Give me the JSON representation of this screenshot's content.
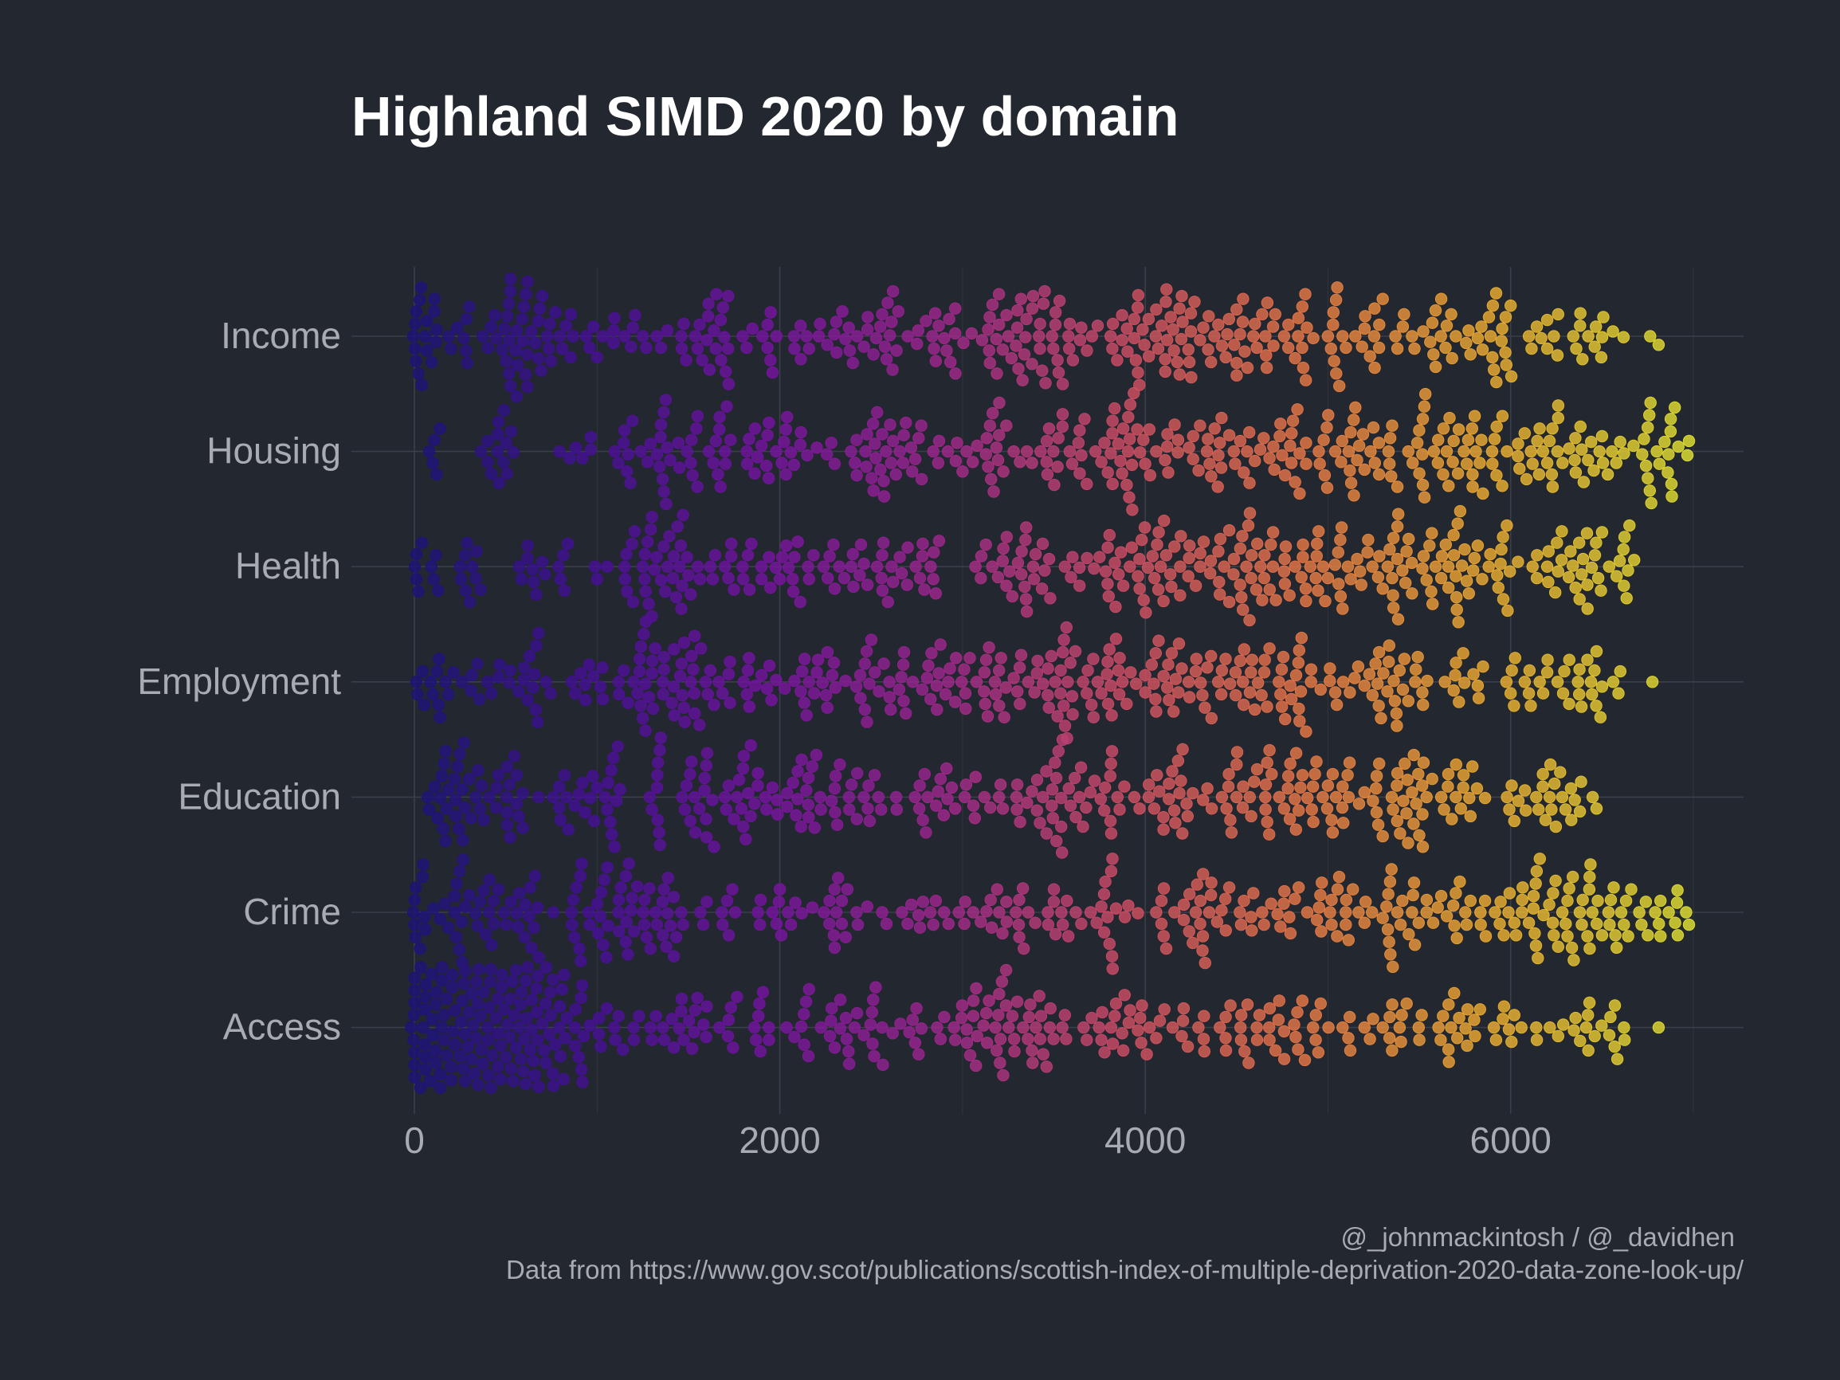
{
  "chart_data": {
    "type": "scatter",
    "subtype": "beeswarm",
    "title": "Highland SIMD 2020 by domain",
    "xlabel": "",
    "ylabel": "",
    "xlim": [
      -310,
      7300
    ],
    "x_ticks": [
      0,
      2000,
      4000,
      6000
    ],
    "x_tick_labels": [
      "0",
      "2000",
      "4000",
      "6000"
    ],
    "grid": true,
    "legend": "none",
    "categories": [
      "Income",
      "Housing",
      "Health",
      "Employment",
      "Education",
      "Crime",
      "Access"
    ],
    "color_scale": {
      "low": "#1c1479",
      "mid_low": "#6d0fa6",
      "mid": "#b83a80",
      "mid_high": "#e8773f",
      "high": "#e3e436",
      "domain": [
        0,
        6976
      ]
    },
    "series": [
      {
        "name": "Income",
        "approx_points": 312,
        "x_range": [
          10,
          6810
        ],
        "values": [
          10,
          60,
          110,
          200,
          300,
          420,
          480,
          560,
          600,
          640,
          700,
          830,
          980,
          1000,
          1150,
          1250,
          1350,
          1460,
          1550,
          1600,
          1650,
          1720,
          1850,
          1950,
          2080,
          2160,
          2260,
          2400,
          2480,
          2560,
          2620,
          2700,
          2800,
          2900,
          2960,
          3050,
          3140,
          3200,
          3300,
          3380,
          3450,
          3520,
          3580,
          3650,
          3740,
          3820,
          3900,
          3960,
          4020,
          4060,
          4120,
          4200,
          4250,
          4300,
          4360,
          4420,
          4500,
          4560,
          4640,
          4700,
          4760,
          4820,
          4860,
          4920,
          5000,
          5080,
          5150,
          5230,
          5300,
          5380,
          5460,
          5560,
          5620,
          5700,
          5780,
          5820,
          5900,
          5950,
          6000,
          6100,
          6200,
          6260,
          6380,
          6460,
          6560,
          6810
        ]
      },
      {
        "name": "Housing",
        "approx_points": 312,
        "x_range": [
          100,
          6976
        ],
        "values": [
          100,
          420,
          490,
          850,
          920,
          1150,
          1240,
          1350,
          1400,
          1550,
          1650,
          1700,
          1820,
          1900,
          1980,
          2060,
          2150,
          2300,
          2420,
          2520,
          2560,
          2620,
          2690,
          2760,
          2840,
          2920,
          3000,
          3080,
          3140,
          3200,
          3280,
          3380,
          3460,
          3520,
          3600,
          3680,
          3760,
          3820,
          3880,
          3940,
          4000,
          4060,
          4120,
          4180,
          4240,
          4300,
          4380,
          4460,
          4520,
          4600,
          4680,
          4740,
          4800,
          4880,
          4950,
          5040,
          5120,
          5200,
          5280,
          5380,
          5440,
          5500,
          5580,
          5660,
          5760,
          5840,
          5900,
          5980,
          6040,
          6120,
          6200,
          6260,
          6320,
          6400,
          6500,
          6620,
          6720,
          6800,
          6880,
          6976
        ]
      },
      {
        "name": "Health",
        "approx_points": 312,
        "x_range": [
          10,
          6676
        ],
        "values": [
          10,
          130,
          250,
          340,
          620,
          700,
          840,
          1000,
          1160,
          1250,
          1350,
          1420,
          1500,
          1620,
          1700,
          1800,
          1900,
          2000,
          2080,
          2160,
          2300,
          2400,
          2480,
          2560,
          2620,
          2700,
          2780,
          2840,
          3100,
          3220,
          3340,
          3400,
          3480,
          3560,
          3640,
          3720,
          3800,
          3880,
          3960,
          4040,
          4100,
          4160,
          4240,
          4320,
          4400,
          4460,
          4520,
          4580,
          4640,
          4700,
          4760,
          4820,
          4880,
          4940,
          5000,
          5080,
          5160,
          5220,
          5300,
          5380,
          5460,
          5540,
          5620,
          5700,
          5760,
          5820,
          5880,
          5960,
          6040,
          6120,
          6200,
          6260,
          6340,
          6420,
          6500,
          6580,
          6676
        ]
      },
      {
        "name": "Employment",
        "approx_points": 312,
        "x_range": [
          10,
          6776
        ],
        "values": [
          10,
          140,
          260,
          400,
          520,
          620,
          720,
          880,
          980,
          1120,
          1240,
          1360,
          1420,
          1480,
          1560,
          1640,
          1720,
          1820,
          1900,
          1980,
          2080,
          2160,
          2260,
          2360,
          2440,
          2520,
          2600,
          2680,
          2780,
          2860,
          2960,
          3040,
          3120,
          3200,
          3280,
          3360,
          3440,
          3520,
          3600,
          3680,
          3760,
          3840,
          3920,
          4000,
          4060,
          4120,
          4200,
          4280,
          4360,
          4440,
          4520,
          4600,
          4680,
          4740,
          4800,
          4880,
          4960,
          5040,
          5120,
          5200,
          5280,
          5360,
          5440,
          5520,
          5640,
          5740,
          5820,
          6000,
          6100,
          6200,
          6320,
          6420,
          6500,
          6600,
          6776
        ]
      },
      {
        "name": "Education",
        "approx_points": 312,
        "x_range": [
          80,
          6470
        ],
        "values": [
          80,
          150,
          220,
          300,
          380,
          460,
          560,
          680,
          800,
          900,
          1000,
          1080,
          1300,
          1480,
          1560,
          1640,
          1720,
          1800,
          1880,
          1960,
          2040,
          2120,
          2200,
          2300,
          2380,
          2460,
          2540,
          2640,
          2740,
          2800,
          2880,
          2960,
          3020,
          3120,
          3200,
          3300,
          3380,
          3460,
          3540,
          3620,
          3700,
          3780,
          3860,
          3940,
          4020,
          4100,
          4180,
          4260,
          4340,
          4420,
          4500,
          4580,
          4660,
          4760,
          4840,
          4920,
          5000,
          5080,
          5200,
          5300,
          5380,
          5460,
          5540,
          5620,
          5700,
          5780,
          5860,
          6020,
          6140,
          6240,
          6330,
          6470
        ]
      },
      {
        "name": "Crime",
        "approx_points": 312,
        "x_range": [
          0,
          6976
        ],
        "values": [
          0,
          60,
          140,
          220,
          300,
          380,
          460,
          560,
          660,
          760,
          860,
          960,
          1060,
          1160,
          1260,
          1360,
          1460,
          1600,
          1740,
          1880,
          2000,
          2120,
          2300,
          2420,
          2560,
          2720,
          2840,
          2980,
          3100,
          3240,
          3360,
          3500,
          3620,
          3760,
          3840,
          3960,
          4060,
          4160,
          4260,
          4360,
          4460,
          4540,
          4640,
          4740,
          4840,
          4940,
          5020,
          5100,
          5200,
          5300,
          5380,
          5460,
          5540,
          5620,
          5700,
          5780,
          5860,
          5940,
          6020,
          6100,
          6180,
          6260,
          6340,
          6420,
          6500,
          6580,
          6660,
          6740,
          6820,
          6900,
          6976
        ]
      },
      {
        "name": "Access",
        "approx_points": 312,
        "x_range": [
          0,
          6810
        ],
        "values": [
          0,
          30,
          60,
          90,
          120,
          150,
          180,
          210,
          240,
          270,
          300,
          340,
          380,
          420,
          460,
          500,
          560,
          620,
          660,
          720,
          800,
          880,
          960,
          1020,
          1100,
          1200,
          1300,
          1420,
          1520,
          1600,
          1720,
          1860,
          1940,
          2080,
          2160,
          2280,
          2380,
          2460,
          2560,
          2660,
          2760,
          2880,
          2960,
          3060,
          3180,
          3300,
          3380,
          3460,
          3560,
          3680,
          3760,
          3880,
          3960,
          4080,
          4200,
          4320,
          4440,
          4560,
          4680,
          4760,
          4860,
          4960,
          5080,
          5200,
          5300,
          5400,
          5500,
          5660,
          5800,
          5920,
          6020,
          6140,
          6260,
          6380,
          6460,
          6540,
          6620,
          6810
        ]
      }
    ]
  },
  "caption": {
    "credit": "@_johnmackintosh / @_davidhen",
    "source": "Data from https://www.gov.scot/publications/scottish-index-of-multiple-deprivation-2020-data-zone-look-up/"
  }
}
